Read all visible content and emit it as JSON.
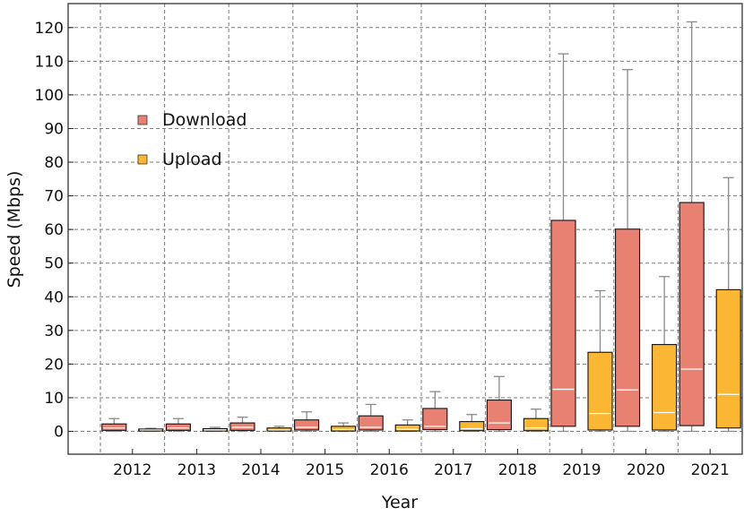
{
  "chart_data": {
    "type": "box",
    "title": "",
    "xlabel": "Year",
    "ylabel": "Speed (Mbps)",
    "ylim": [
      -7,
      127
    ],
    "yticks": [
      0,
      10,
      20,
      30,
      40,
      50,
      60,
      70,
      80,
      90,
      100,
      110,
      120
    ],
    "grid": true,
    "legend_position": "upper-left",
    "categories": [
      "2012",
      "2013",
      "2014",
      "2015",
      "2016",
      "2017",
      "2018",
      "2019",
      "2020",
      "2021"
    ],
    "series": [
      {
        "name": "Download",
        "color": "#e98173",
        "boxes": [
          {
            "low": 0,
            "q1": 0.3,
            "median": 1.0,
            "q3": 2.2,
            "high": 3.8
          },
          {
            "low": 0,
            "q1": 0.3,
            "median": 1.0,
            "q3": 2.2,
            "high": 3.8
          },
          {
            "low": 0,
            "q1": 0.3,
            "median": 1.2,
            "q3": 2.5,
            "high": 4.2
          },
          {
            "low": 0,
            "q1": 0.4,
            "median": 1.2,
            "q3": 3.4,
            "high": 5.8
          },
          {
            "low": 0,
            "q1": 0.4,
            "median": 1.2,
            "q3": 4.6,
            "high": 8.0
          },
          {
            "low": 0,
            "q1": 0.5,
            "median": 1.5,
            "q3": 6.8,
            "high": 11.8
          },
          {
            "low": 0,
            "q1": 0.5,
            "median": 2.5,
            "q3": 9.3,
            "high": 16.3
          },
          {
            "low": 0,
            "q1": 1.5,
            "median": 12.5,
            "q3": 62.7,
            "high": 112.2
          },
          {
            "low": 0,
            "q1": 1.5,
            "median": 12.3,
            "q3": 60.1,
            "high": 107.5
          },
          {
            "low": 0,
            "q1": 1.7,
            "median": 18.5,
            "q3": 68.0,
            "high": 121.7
          }
        ]
      },
      {
        "name": "Upload",
        "color": "#fbb633",
        "boxes": [
          {
            "low": 0,
            "q1": 0.1,
            "median": 0.4,
            "q3": 0.7,
            "high": 0.9
          },
          {
            "low": 0,
            "q1": 0.1,
            "median": 0.4,
            "q3": 0.8,
            "high": 1.2
          },
          {
            "low": 0,
            "q1": 0.1,
            "median": 0.4,
            "q3": 1.0,
            "high": 1.5
          },
          {
            "low": 0,
            "q1": 0.1,
            "median": 0.5,
            "q3": 1.5,
            "high": 2.5
          },
          {
            "low": 0,
            "q1": 0.1,
            "median": 0.6,
            "q3": 1.9,
            "high": 3.4
          },
          {
            "low": 0,
            "q1": 0.2,
            "median": 0.8,
            "q3": 2.9,
            "high": 5.0
          },
          {
            "low": 0,
            "q1": 0.2,
            "median": 1.0,
            "q3": 3.8,
            "high": 6.6
          },
          {
            "low": 0,
            "q1": 0.4,
            "median": 5.3,
            "q3": 23.5,
            "high": 41.8
          },
          {
            "low": 0,
            "q1": 0.4,
            "median": 5.6,
            "q3": 25.8,
            "high": 46.0
          },
          {
            "low": 0,
            "q1": 1.0,
            "median": 11.0,
            "q3": 42.1,
            "high": 75.4
          }
        ]
      }
    ]
  }
}
